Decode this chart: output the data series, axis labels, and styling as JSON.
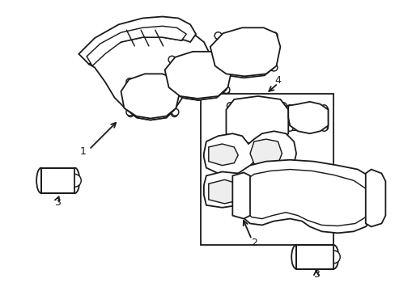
{
  "background_color": "#ffffff",
  "line_color": "#1a1a1a",
  "line_width": 1.3,
  "label_fontsize": 9,
  "fig_width": 4.89,
  "fig_height": 3.6,
  "dpi": 100
}
